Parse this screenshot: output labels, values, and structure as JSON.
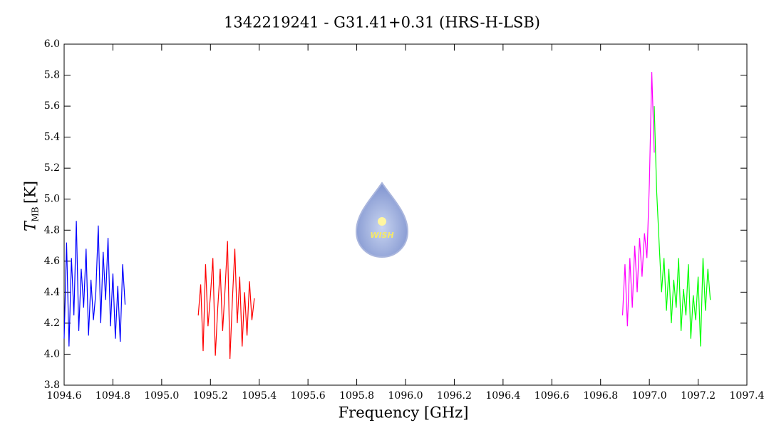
{
  "chart_data": {
    "type": "line",
    "title": "1342219241 - G31.41+0.31 (HRS-H-LSB)",
    "xlabel": "Frequency [GHz]",
    "ylabel": {
      "symbol": "T",
      "subscript": "MB",
      "unit": "[K]"
    },
    "logo_text": "WISH",
    "xlim": [
      1094.6,
      1097.4
    ],
    "xticks": [
      1094.6,
      1094.8,
      {
        "value": 1095,
        "label": "1095.0"
      },
      1095.2,
      1095.4,
      1095.6,
      1095.8,
      {
        "value": 1096,
        "label": "1096.0"
      },
      1096.2,
      1096.4,
      1096.6,
      1096.8,
      {
        "value": 1097,
        "label": "1097.0"
      },
      1097.2,
      1097.4
    ],
    "ylim": [
      3.8,
      6.0
    ],
    "yticks": [
      3.8,
      {
        "value": 4,
        "label": "4.0"
      },
      4.2,
      4.4,
      4.6,
      4.8,
      {
        "value": 5,
        "label": "5.0"
      },
      5.2,
      5.4,
      5.6,
      5.8,
      {
        "value": 6,
        "label": "6.0"
      }
    ],
    "series": [
      {
        "color": "#0000ff",
        "x": [
          1094.6,
          1094.61,
          1094.62,
          1094.63,
          1094.64,
          1094.65,
          1094.66,
          1094.67,
          1094.68,
          1094.69,
          1094.7,
          1094.71,
          1094.72,
          1094.73,
          1094.74,
          1094.75,
          1094.76,
          1094.77,
          1094.78,
          1094.79,
          1094.8,
          1094.81,
          1094.82,
          1094.83,
          1094.84,
          1094.85
        ],
        "values": [
          4.1,
          4.72,
          4.05,
          4.62,
          4.25,
          4.86,
          4.15,
          4.55,
          4.3,
          4.68,
          4.12,
          4.48,
          4.22,
          4.4,
          4.83,
          4.2,
          4.66,
          4.35,
          4.75,
          4.18,
          4.52,
          4.1,
          4.44,
          4.08,
          4.58,
          4.32
        ]
      },
      {
        "color": "#ff0000",
        "x": [
          1095.15,
          1095.16,
          1095.17,
          1095.18,
          1095.19,
          1095.2,
          1095.21,
          1095.22,
          1095.23,
          1095.24,
          1095.25,
          1095.26,
          1095.27,
          1095.28,
          1095.29,
          1095.3,
          1095.31,
          1095.32,
          1095.33,
          1095.34,
          1095.35,
          1095.36,
          1095.37,
          1095.38
        ],
        "values": [
          4.25,
          4.45,
          4.02,
          4.58,
          4.18,
          4.38,
          4.62,
          3.99,
          4.3,
          4.55,
          4.15,
          4.42,
          4.73,
          3.97,
          4.35,
          4.68,
          4.2,
          4.5,
          4.05,
          4.4,
          4.12,
          4.47,
          4.22,
          4.36
        ]
      },
      {
        "color": "#ff00ff",
        "x": [
          1096.89,
          1096.9,
          1096.91,
          1096.92,
          1096.93,
          1096.94,
          1096.95,
          1096.96,
          1096.97,
          1096.98,
          1096.99,
          1097.0,
          1097.01,
          1097.02
        ],
        "values": [
          4.25,
          4.58,
          4.18,
          4.62,
          4.3,
          4.7,
          4.4,
          4.75,
          4.5,
          4.78,
          4.62,
          5.1,
          5.82,
          5.3
        ]
      },
      {
        "color": "#00ff00",
        "x": [
          1097.02,
          1097.03,
          1097.04,
          1097.05,
          1097.06,
          1097.07,
          1097.08,
          1097.09,
          1097.1,
          1097.11,
          1097.12,
          1097.13,
          1097.14,
          1097.15,
          1097.16,
          1097.17,
          1097.18,
          1097.19,
          1097.2,
          1097.21,
          1097.22,
          1097.23,
          1097.24,
          1097.25
        ],
        "values": [
          5.6,
          5.05,
          4.72,
          4.4,
          4.62,
          4.28,
          4.55,
          4.2,
          4.48,
          4.3,
          4.62,
          4.15,
          4.42,
          4.25,
          4.58,
          4.1,
          4.38,
          4.22,
          4.5,
          4.05,
          4.62,
          4.28,
          4.55,
          4.35
        ]
      }
    ]
  }
}
